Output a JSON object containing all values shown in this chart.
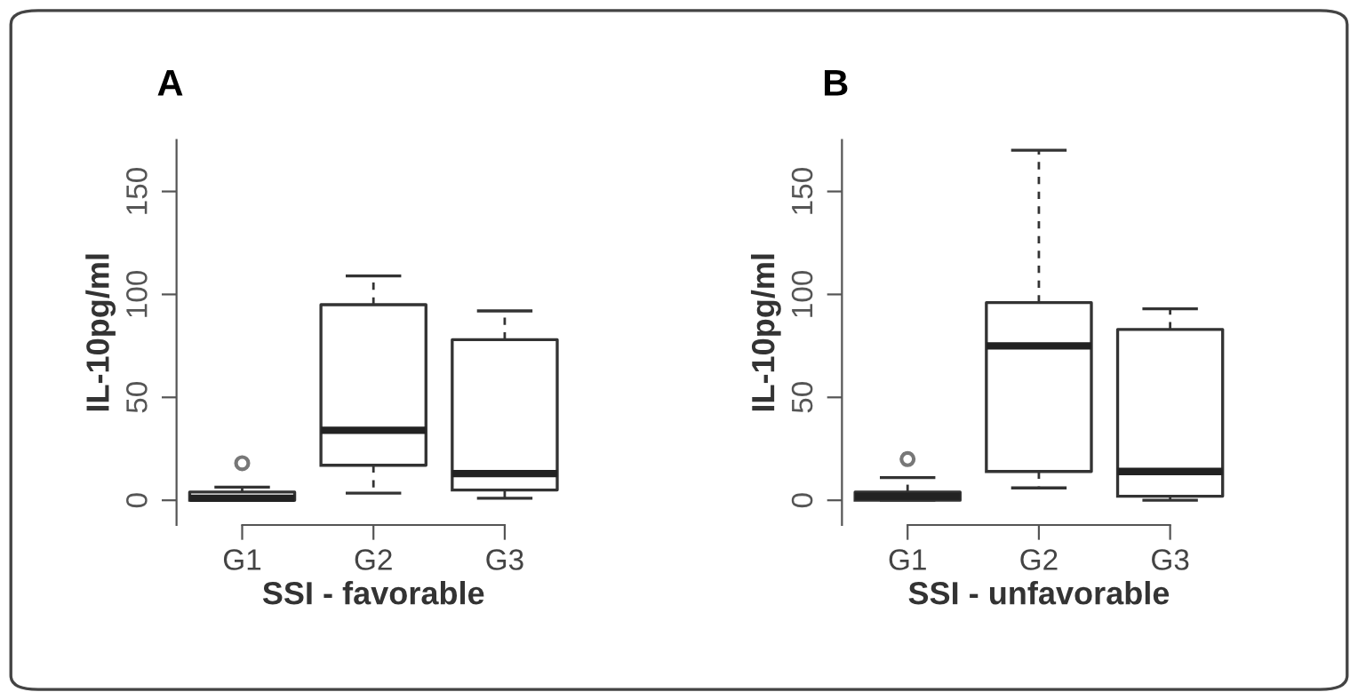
{
  "chart_data": [
    {
      "type": "box",
      "title": "A",
      "xlabel": "SSI - favorable",
      "ylabel": "IL-10pg/ml",
      "categories": [
        "G1",
        "G2",
        "G3"
      ],
      "ylim": [
        -12,
        175
      ],
      "yticks": [
        0,
        50,
        100,
        150
      ],
      "grid": false,
      "legend": false,
      "boxes": [
        {
          "low": 0,
          "q1": 0,
          "median": 1,
          "q3": 4,
          "high": 6.4,
          "outliers": [
            18
          ]
        },
        {
          "low": 3.5,
          "q1": 17,
          "median": 34,
          "q3": 95,
          "high": 109
        },
        {
          "low": 1,
          "q1": 5,
          "median": 13,
          "q3": 78,
          "high": 92
        }
      ]
    },
    {
      "type": "box",
      "title": "B",
      "xlabel": "SSI - unfavorable",
      "ylabel": "IL-10pg/ml",
      "categories": [
        "G1",
        "G2",
        "G3"
      ],
      "ylim": [
        -12,
        175
      ],
      "yticks": [
        0,
        50,
        100,
        150
      ],
      "grid": false,
      "legend": false,
      "boxes": [
        {
          "low": 0,
          "q1": 0,
          "median": 2,
          "q3": 4,
          "high": 11,
          "outliers": [
            20
          ]
        },
        {
          "low": 6,
          "q1": 14,
          "median": 75,
          "q3": 96,
          "high": 170
        },
        {
          "low": 0,
          "q1": 2,
          "median": 14,
          "q3": 83,
          "high": 93
        }
      ]
    }
  ]
}
